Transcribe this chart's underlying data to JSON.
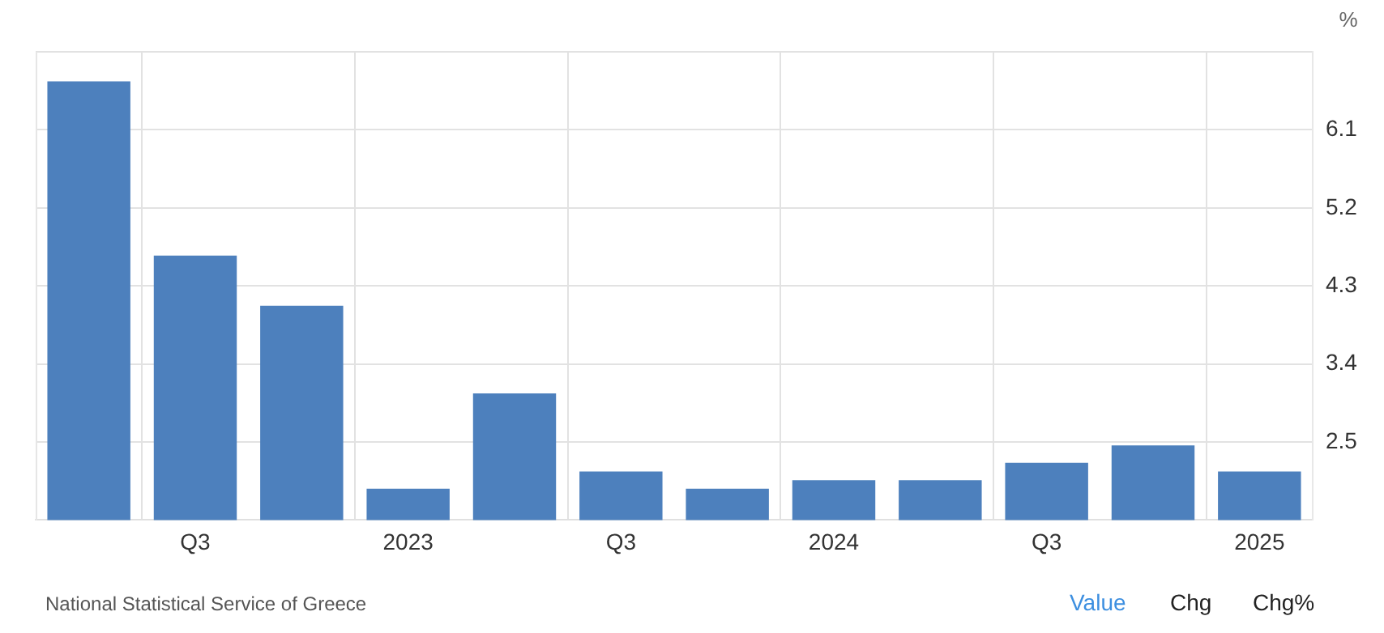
{
  "chart_data": {
    "type": "bar",
    "ylabel": "%",
    "categories": [
      null,
      "Q3",
      null,
      "2023",
      null,
      "Q3",
      null,
      "2024",
      null,
      "Q3",
      null,
      "2025"
    ],
    "values": [
      6.66,
      4.65,
      4.07,
      1.96,
      3.06,
      2.16,
      1.96,
      2.06,
      2.06,
      2.26,
      2.46,
      2.16
    ],
    "color": "#4d80bd",
    "ylim": [
      1.6,
      7.0
    ],
    "yticks": [
      2.5,
      3.4,
      4.3,
      5.2,
      6.1,
      {
        "value": 7.0,
        "label": null
      }
    ],
    "grid": true,
    "legend": false,
    "annotations": [
      "National Statistical Service of Greece",
      "Value",
      "Chg",
      "Chg%"
    ]
  }
}
